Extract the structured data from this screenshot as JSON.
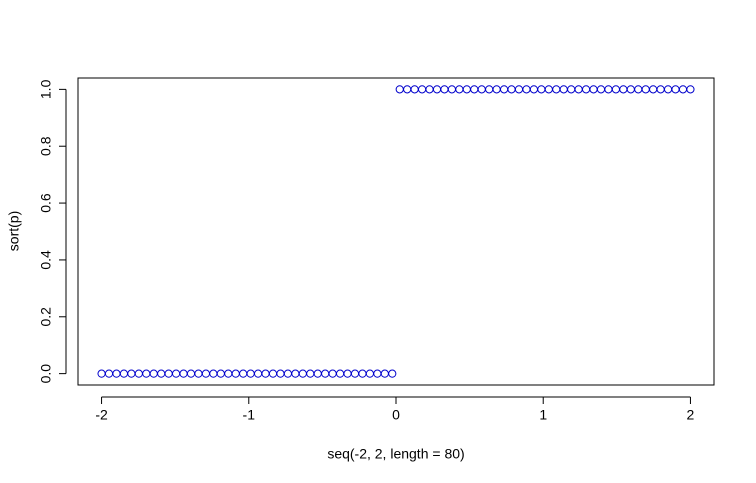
{
  "chart_data": {
    "type": "scatter",
    "xlabel": "seq(-2, 2, length = 80)",
    "ylabel": "sort(p)",
    "x": [
      -2,
      -1.9494,
      -1.8987,
      -1.8481,
      -1.7975,
      -1.7468,
      -1.6962,
      -1.6456,
      -1.5949,
      -1.5443,
      -1.4937,
      -1.443,
      -1.3924,
      -1.3418,
      -1.2911,
      -1.2405,
      -1.1899,
      -1.1392,
      -1.0886,
      -1.038,
      -0.9873,
      -0.9367,
      -0.8861,
      -0.8354,
      -0.7848,
      -0.7342,
      -0.6835,
      -0.6329,
      -0.5823,
      -0.5316,
      -0.481,
      -0.4304,
      -0.3797,
      -0.3291,
      -0.2785,
      -0.2278,
      -0.1772,
      -0.1266,
      -0.0759,
      -0.0253,
      0.0253,
      0.0759,
      0.1266,
      0.1772,
      0.2278,
      0.2785,
      0.3291,
      0.3797,
      0.4304,
      0.481,
      0.5316,
      0.5823,
      0.6329,
      0.6835,
      0.7342,
      0.7848,
      0.8354,
      0.8861,
      0.9367,
      0.9873,
      1.038,
      1.0886,
      1.1392,
      1.1899,
      1.2405,
      1.2911,
      1.3418,
      1.3924,
      1.443,
      1.4937,
      1.5443,
      1.5949,
      1.6456,
      1.6962,
      1.7468,
      1.7975,
      1.8481,
      1.8987,
      1.9494,
      2
    ],
    "y": [
      0,
      0,
      0,
      0,
      0,
      0,
      0,
      0,
      0,
      0,
      0,
      0,
      0,
      0,
      0,
      0,
      0,
      0,
      0,
      0,
      0,
      0,
      0,
      0,
      0,
      0,
      0,
      0,
      0,
      0,
      0,
      0,
      0,
      0,
      0,
      0,
      0,
      0,
      0,
      0,
      1,
      1,
      1,
      1,
      1,
      1,
      1,
      1,
      1,
      1,
      1,
      1,
      1,
      1,
      1,
      1,
      1,
      1,
      1,
      1,
      1,
      1,
      1,
      1,
      1,
      1,
      1,
      1,
      1,
      1,
      1,
      1,
      1,
      1,
      1,
      1,
      1,
      1,
      1,
      1
    ],
    "color": "#0000cc",
    "xlim": [
      -2.16,
      2.16
    ],
    "ylim": [
      -0.04,
      1.04
    ],
    "xticks": [
      -2,
      -1,
      0,
      1,
      2
    ],
    "yticks": [
      {
        "value": 0,
        "label": "0.0"
      },
      0.2,
      0.4,
      0.6,
      0.8,
      {
        "value": 1,
        "label": "1.0"
      }
    ]
  }
}
